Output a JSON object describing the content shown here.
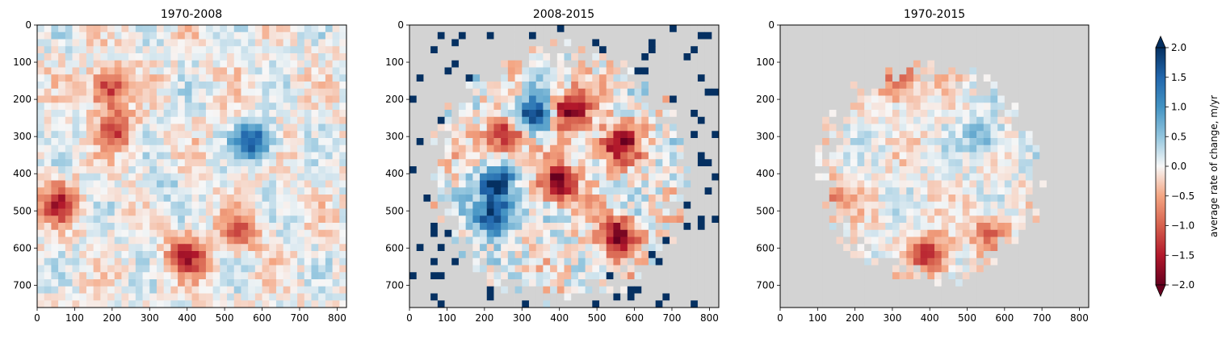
{
  "chart_data": [
    {
      "type": "heatmap",
      "title": "1970-2008",
      "xlim": [
        0,
        825
      ],
      "ylim": [
        760,
        0
      ],
      "xticks": [
        0,
        100,
        200,
        300,
        400,
        500,
        600,
        700,
        800
      ],
      "yticks": [
        0,
        100,
        200,
        300,
        400,
        500,
        600,
        700
      ],
      "nodata": "none",
      "features": [
        {
          "x": 190,
          "y": 170,
          "value": -1.4
        },
        {
          "x": 210,
          "y": 280,
          "value": -1.2
        },
        {
          "x": 580,
          "y": 310,
          "value": 1.7
        },
        {
          "x": 60,
          "y": 480,
          "value": -1.4
        },
        {
          "x": 400,
          "y": 620,
          "value": -1.5
        },
        {
          "x": 540,
          "y": 560,
          "value": -0.9
        },
        {
          "x": 330,
          "y": 450,
          "value": 0.4
        }
      ]
    },
    {
      "type": "heatmap",
      "title": "2008-2015",
      "xlim": [
        0,
        825
      ],
      "ylim": [
        760,
        0
      ],
      "xticks": [
        0,
        100,
        200,
        300,
        400,
        500,
        600,
        700,
        800
      ],
      "yticks": [
        0,
        100,
        200,
        300,
        400,
        500,
        600,
        700
      ],
      "nodata": "medium",
      "features": [
        {
          "x": 330,
          "y": 240,
          "value": 2.0
        },
        {
          "x": 430,
          "y": 230,
          "value": -2.0
        },
        {
          "x": 560,
          "y": 320,
          "value": -1.8
        },
        {
          "x": 230,
          "y": 430,
          "value": 1.9
        },
        {
          "x": 230,
          "y": 520,
          "value": 2.0
        },
        {
          "x": 560,
          "y": 570,
          "value": -2.0
        },
        {
          "x": 400,
          "y": 420,
          "value": -2.0
        },
        {
          "x": 260,
          "y": 300,
          "value": -1.6
        },
        {
          "x": 70,
          "y": 630,
          "value": 2.0
        },
        {
          "x": 150,
          "y": 80,
          "value": 2.0
        }
      ]
    },
    {
      "type": "heatmap",
      "title": "1970-2015",
      "xlim": [
        0,
        825
      ],
      "ylim": [
        760,
        0
      ],
      "xticks": [
        0,
        100,
        200,
        300,
        400,
        500,
        600,
        700,
        800
      ],
      "yticks": [
        0,
        100,
        200,
        300,
        400,
        500,
        600,
        700
      ],
      "nodata": "large",
      "features": [
        {
          "x": 320,
          "y": 150,
          "value": -1.3
        },
        {
          "x": 400,
          "y": 620,
          "value": -1.4
        },
        {
          "x": 560,
          "y": 560,
          "value": -1.0
        },
        {
          "x": 130,
          "y": 470,
          "value": -0.9
        },
        {
          "x": 540,
          "y": 300,
          "value": 0.8
        }
      ]
    }
  ],
  "colorbar": {
    "label": "average rate of change, m/yr",
    "range": [
      -2.0,
      2.0
    ],
    "ticks": [
      "2.0",
      "1.5",
      "1.0",
      "0.5",
      "0.0",
      "−0.5",
      "−1.0",
      "−1.5",
      "−2.0"
    ],
    "tick_values": [
      2.0,
      1.5,
      1.0,
      0.5,
      0.0,
      -0.5,
      -1.0,
      -1.5,
      -2.0
    ],
    "colormap": "RdBu",
    "extend": "both"
  },
  "colors": {
    "nodata": "#d3d3d3",
    "deep_red": "#67001f",
    "deep_blue": "#053061",
    "white": "#f7f7f7"
  }
}
